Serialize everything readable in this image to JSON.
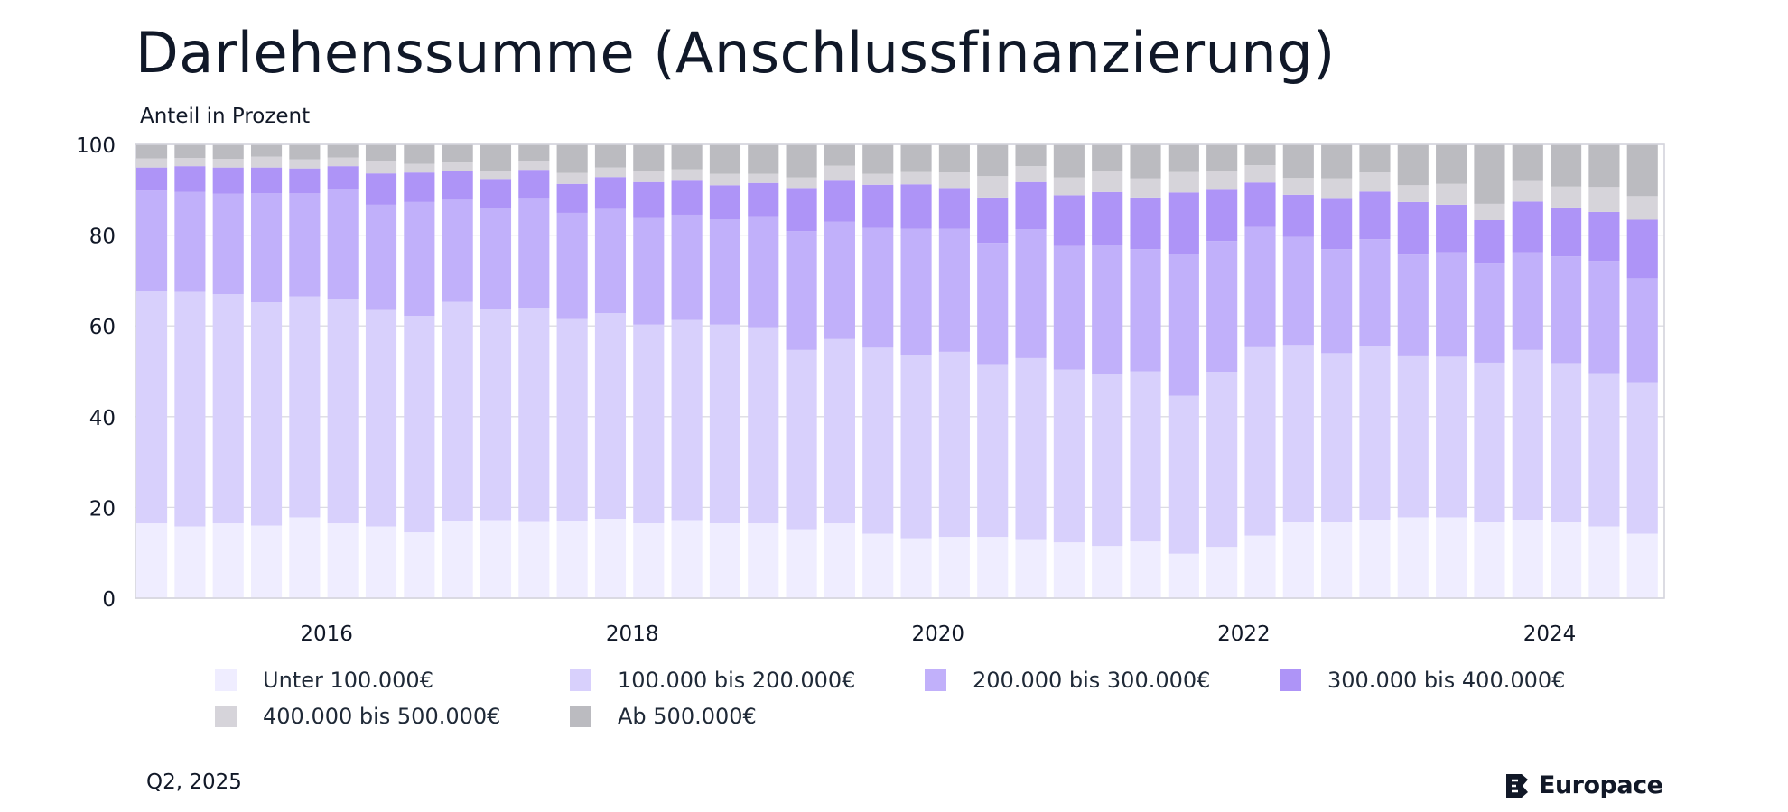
{
  "title": "Darlehenssumme (Anschlussfinanzierung)",
  "subtitle": "Anteil in Prozent",
  "footer_date": "Q2, 2025",
  "brand": "Europace",
  "chart_data": {
    "type": "bar",
    "stacked": true,
    "ylabel": "Anteil in Prozent",
    "ylim": [
      0,
      100
    ],
    "y_ticks": [
      0,
      20,
      40,
      60,
      80,
      100
    ],
    "x_tick_labels": [
      "2016",
      "2018",
      "2020",
      "2022",
      "2024"
    ],
    "x_tick_categories": [
      "2016-01",
      "2018-01",
      "2020-01",
      "2022-01",
      "2024-01"
    ],
    "grid": true,
    "legend_position": "bottom",
    "categories": [
      "2014-11",
      "2015-02",
      "2015-05",
      "2015-08",
      "2015-11",
      "2016-02",
      "2016-05",
      "2016-08",
      "2016-11",
      "2017-02",
      "2017-05",
      "2017-08",
      "2017-11",
      "2018-02",
      "2018-05",
      "2018-08",
      "2018-11",
      "2019-02",
      "2019-05",
      "2019-08",
      "2019-11",
      "2020-02",
      "2020-05",
      "2020-08",
      "2020-11",
      "2021-02",
      "2021-05",
      "2021-08",
      "2021-11",
      "2022-02",
      "2022-05",
      "2022-08",
      "2022-11",
      "2023-02",
      "2023-05",
      "2023-08",
      "2023-11",
      "2024-02",
      "2024-05",
      "2024-08"
    ],
    "series": [
      {
        "name": "Unter 100.000€",
        "color": "#efedff",
        "values": [
          16.5,
          15.8,
          16.5,
          16.0,
          17.8,
          16.5,
          15.8,
          14.5,
          17.0,
          17.2,
          16.8,
          17.0,
          17.5,
          16.5,
          17.2,
          16.5,
          16.5,
          15.2,
          16.5,
          14.2,
          13.2,
          13.5,
          13.5,
          13.0,
          12.3,
          11.5,
          12.5,
          9.8,
          11.3,
          13.8,
          16.7,
          16.7,
          17.3,
          17.8,
          17.8,
          16.7,
          17.3,
          16.7,
          15.8,
          14.2
        ]
      },
      {
        "name": "100.000 bis 200.000€",
        "color": "#d8d0fc",
        "values": [
          51.2,
          51.7,
          50.5,
          49.2,
          48.7,
          49.5,
          47.7,
          47.7,
          48.3,
          46.6,
          47.2,
          44.5,
          45.3,
          43.8,
          44.1,
          43.8,
          43.2,
          39.5,
          40.6,
          41.0,
          40.4,
          40.8,
          37.9,
          39.9,
          38.1,
          38.0,
          37.5,
          34.8,
          38.6,
          41.5,
          39.1,
          37.3,
          38.2,
          35.5,
          35.4,
          35.2,
          37.4,
          35.1,
          33.8,
          33.4
        ]
      },
      {
        "name": "200.000 bis 300.000€",
        "color": "#c1b0fa",
        "values": [
          22.1,
          22.0,
          22.1,
          24.0,
          22.7,
          24.2,
          23.2,
          25.1,
          22.5,
          22.2,
          24.0,
          23.4,
          23.0,
          23.5,
          23.2,
          23.2,
          24.5,
          26.2,
          25.9,
          26.4,
          27.8,
          27.1,
          26.9,
          28.4,
          27.2,
          28.4,
          26.9,
          31.2,
          28.8,
          26.5,
          23.8,
          22.9,
          23.6,
          22.4,
          23.0,
          21.8,
          21.5,
          23.5,
          24.7,
          22.9
        ]
      },
      {
        "name": "300.000 bis 400.000€",
        "color": "#ae94f7",
        "values": [
          5.1,
          5.7,
          5.8,
          5.7,
          5.5,
          5.0,
          6.9,
          6.5,
          6.4,
          6.4,
          6.4,
          6.4,
          7.0,
          7.9,
          7.5,
          7.5,
          7.3,
          9.5,
          9.0,
          9.5,
          9.8,
          9.0,
          10.0,
          10.4,
          11.2,
          11.6,
          11.4,
          13.6,
          11.3,
          9.8,
          9.3,
          11.1,
          10.5,
          11.6,
          10.5,
          9.6,
          11.2,
          10.8,
          10.8,
          12.9
        ]
      },
      {
        "name": "400.000 bis 500.000€",
        "color": "#d6d4da",
        "values": [
          2.0,
          1.8,
          1.9,
          2.4,
          2.0,
          1.9,
          2.8,
          1.9,
          1.8,
          1.8,
          2.0,
          2.4,
          2.1,
          2.3,
          2.5,
          2.5,
          2.0,
          2.3,
          3.3,
          2.4,
          2.7,
          3.4,
          4.7,
          3.5,
          3.9,
          4.5,
          4.2,
          4.5,
          4.0,
          3.8,
          3.7,
          4.5,
          4.2,
          3.7,
          4.6,
          3.6,
          4.5,
          4.6,
          5.5,
          5.2
        ]
      },
      {
        "name": "Ab 500.000€",
        "color": "#bbbbc0",
        "values": [
          3.1,
          3.0,
          3.2,
          2.7,
          3.3,
          2.9,
          3.6,
          4.3,
          4.0,
          5.8,
          3.6,
          6.3,
          5.1,
          6.0,
          5.5,
          6.5,
          6.5,
          7.3,
          4.7,
          6.5,
          6.1,
          6.2,
          7.0,
          4.8,
          7.3,
          6.0,
          7.5,
          6.1,
          6.0,
          4.6,
          7.4,
          7.5,
          6.2,
          9.0,
          8.7,
          13.1,
          8.1,
          9.3,
          9.4,
          11.4
        ]
      }
    ]
  }
}
